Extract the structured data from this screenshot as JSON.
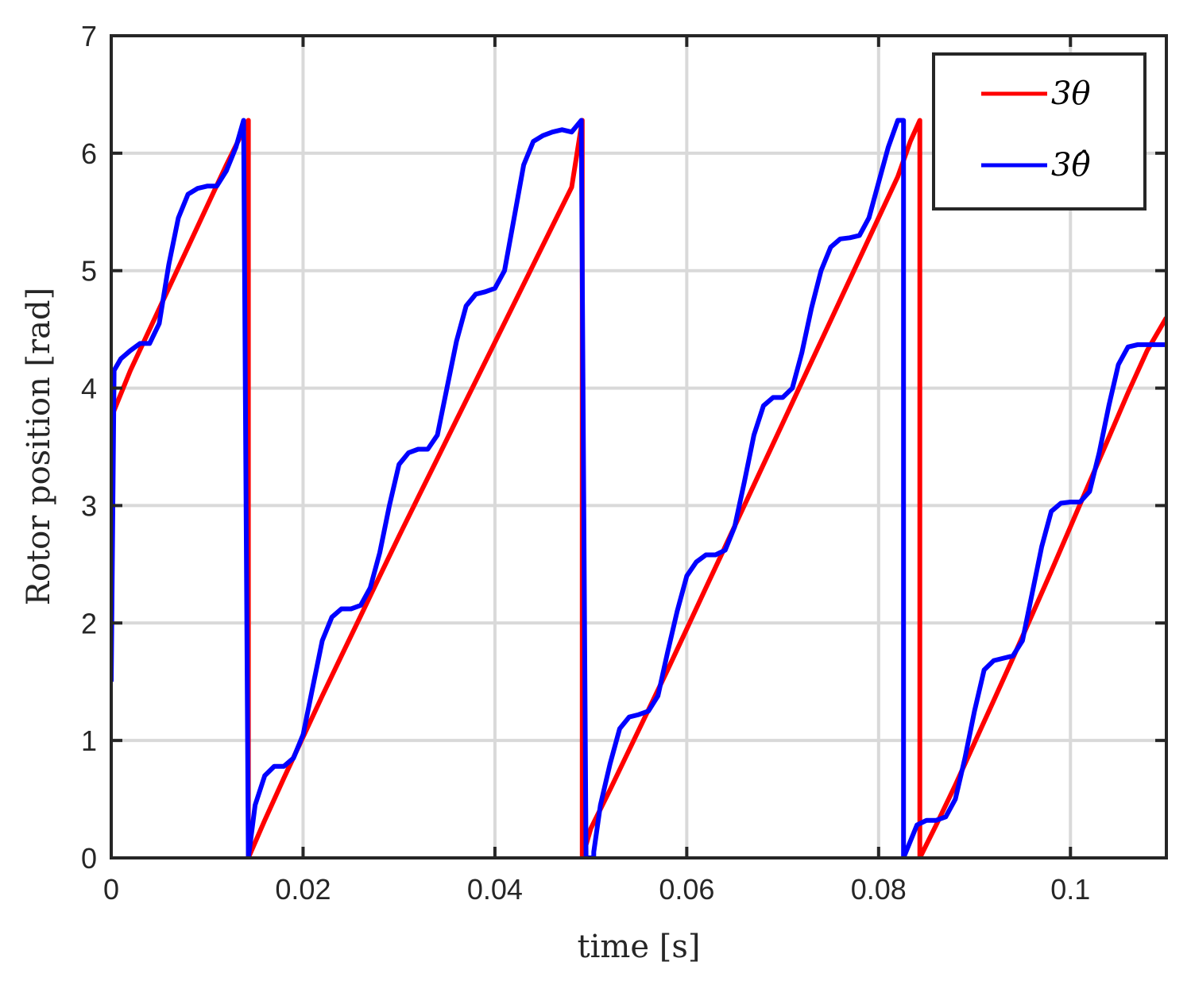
{
  "chart_data": {
    "type": "line",
    "xlabel": "time [s]",
    "ylabel": "Rotor position [rad]",
    "xlim": [
      0,
      0.11
    ],
    "ylim": [
      0,
      7
    ],
    "xticks": [
      0,
      0.02,
      0.04,
      0.06,
      0.08,
      0.1
    ],
    "xtick_labels": [
      "0",
      "0.02",
      "0.04",
      "0.06",
      "0.08",
      "0.1"
    ],
    "yticks": [
      0,
      1,
      2,
      3,
      4,
      5,
      6,
      7
    ],
    "ytick_labels": [
      "0",
      "1",
      "2",
      "3",
      "4",
      "5",
      "6",
      "7"
    ],
    "grid": true,
    "legend_position": "top-right",
    "series": [
      {
        "name": "3θ",
        "color": "#ff0000",
        "x": [
          0,
          0.002,
          0.004,
          0.006,
          0.008,
          0.01,
          0.012,
          0.0143,
          0.0143,
          0.016,
          0.018,
          0.02,
          0.022,
          0.024,
          0.026,
          0.028,
          0.03,
          0.032,
          0.034,
          0.036,
          0.038,
          0.04,
          0.042,
          0.044,
          0.046,
          0.048,
          0.0491,
          0.0491,
          0.05,
          0.052,
          0.054,
          0.056,
          0.058,
          0.06,
          0.062,
          0.064,
          0.066,
          0.068,
          0.07,
          0.072,
          0.074,
          0.076,
          0.078,
          0.08,
          0.082,
          0.0833,
          0.0843,
          0.0843,
          0.086,
          0.088,
          0.09,
          0.092,
          0.094,
          0.096,
          0.098,
          0.1,
          0.102,
          0.104,
          0.106,
          0.108,
          0.11
        ],
        "y": [
          3.75,
          4.15,
          4.5,
          4.85,
          5.2,
          5.55,
          5.9,
          6.28,
          0.0,
          0.32,
          0.68,
          1.03,
          1.38,
          1.72,
          2.06,
          2.4,
          2.74,
          3.07,
          3.4,
          3.73,
          4.06,
          4.39,
          4.72,
          5.05,
          5.38,
          5.71,
          6.28,
          0.0,
          0.25,
          0.58,
          0.92,
          1.26,
          1.6,
          1.95,
          2.3,
          2.65,
          3.0,
          3.35,
          3.7,
          4.05,
          4.4,
          4.75,
          5.1,
          5.45,
          5.8,
          6.1,
          6.28,
          0.0,
          0.28,
          0.62,
          0.98,
          1.34,
          1.7,
          2.07,
          2.44,
          2.82,
          3.2,
          3.58,
          3.96,
          4.32,
          4.6
        ]
      },
      {
        "name": "3θ̂",
        "color": "#0000ff",
        "x": [
          0,
          0.0003,
          0.001,
          0.002,
          0.003,
          0.004,
          0.005,
          0.006,
          0.007,
          0.008,
          0.009,
          0.01,
          0.011,
          0.012,
          0.013,
          0.0138,
          0.0143,
          0.0143,
          0.015,
          0.016,
          0.017,
          0.018,
          0.019,
          0.02,
          0.021,
          0.022,
          0.023,
          0.024,
          0.025,
          0.026,
          0.027,
          0.028,
          0.029,
          0.03,
          0.031,
          0.032,
          0.033,
          0.034,
          0.035,
          0.036,
          0.037,
          0.038,
          0.039,
          0.04,
          0.041,
          0.042,
          0.043,
          0.044,
          0.045,
          0.046,
          0.047,
          0.048,
          0.049,
          0.0495,
          0.0503,
          0.0503,
          0.051,
          0.052,
          0.053,
          0.054,
          0.055,
          0.056,
          0.057,
          0.058,
          0.059,
          0.06,
          0.061,
          0.062,
          0.063,
          0.064,
          0.065,
          0.066,
          0.067,
          0.068,
          0.069,
          0.07,
          0.071,
          0.072,
          0.073,
          0.074,
          0.075,
          0.076,
          0.077,
          0.078,
          0.079,
          0.08,
          0.081,
          0.082,
          0.0826,
          0.0826,
          0.084,
          0.085,
          0.086,
          0.087,
          0.088,
          0.089,
          0.09,
          0.091,
          0.092,
          0.093,
          0.094,
          0.095,
          0.096,
          0.097,
          0.098,
          0.099,
          0.1,
          0.101,
          0.102,
          0.103,
          0.104,
          0.105,
          0.106,
          0.107,
          0.108,
          0.109,
          0.11
        ],
        "y": [
          1.5,
          4.15,
          4.25,
          4.32,
          4.38,
          4.38,
          4.55,
          5.05,
          5.45,
          5.65,
          5.7,
          5.72,
          5.72,
          5.85,
          6.05,
          6.28,
          0.0,
          0.0,
          0.45,
          0.7,
          0.78,
          0.78,
          0.85,
          1.05,
          1.45,
          1.85,
          2.05,
          2.12,
          2.12,
          2.15,
          2.3,
          2.6,
          3.0,
          3.35,
          3.45,
          3.48,
          3.48,
          3.6,
          4.0,
          4.4,
          4.7,
          4.8,
          4.82,
          4.85,
          5.0,
          5.45,
          5.9,
          6.1,
          6.15,
          6.18,
          6.2,
          6.18,
          6.28,
          0.0,
          0.0,
          0.05,
          0.45,
          0.8,
          1.1,
          1.2,
          1.22,
          1.25,
          1.38,
          1.75,
          2.1,
          2.4,
          2.52,
          2.58,
          2.58,
          2.62,
          2.82,
          3.2,
          3.6,
          3.85,
          3.92,
          3.92,
          4.0,
          4.3,
          4.68,
          5.0,
          5.2,
          5.27,
          5.28,
          5.3,
          5.45,
          5.75,
          6.05,
          6.28,
          6.28,
          0.0,
          0.28,
          0.32,
          0.32,
          0.35,
          0.5,
          0.85,
          1.25,
          1.6,
          1.68,
          1.7,
          1.72,
          1.85,
          2.25,
          2.65,
          2.95,
          3.02,
          3.03,
          3.03,
          3.12,
          3.45,
          3.85,
          4.2,
          4.35,
          4.37,
          4.37,
          4.37,
          4.37
        ]
      }
    ]
  }
}
